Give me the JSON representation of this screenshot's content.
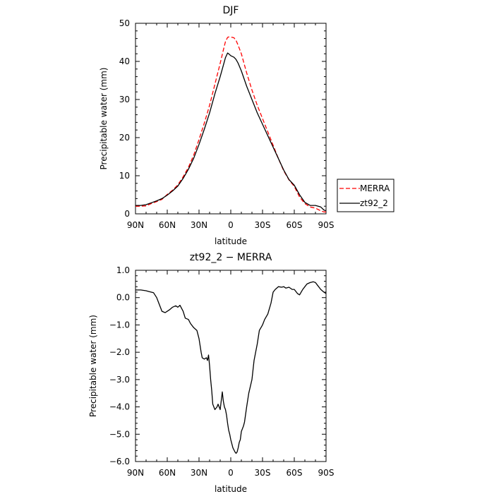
{
  "chart_data": [
    {
      "type": "line",
      "title": "DJF",
      "xlabel": "latitude",
      "ylabel": "Precipitable water (mm)",
      "xlim": [
        90,
        -90
      ],
      "ylim": [
        0,
        50
      ],
      "x_tick_values": [
        90,
        60,
        30,
        0,
        -30,
        -60,
        -90
      ],
      "x_tick_labels": [
        "90N",
        "60N",
        "30N",
        "0",
        "30S",
        "60S",
        "90S"
      ],
      "y_tick_values": [
        0,
        10,
        20,
        30,
        40,
        50
      ],
      "y_tick_labels": [
        "0",
        "10",
        "20",
        "30",
        "40",
        "50"
      ],
      "legend_position": "right, outside plot",
      "series": [
        {
          "name": "MERRA",
          "color": "#ff0000",
          "style": "dashed",
          "x": [
            90,
            85,
            80,
            75,
            70,
            65,
            60,
            55,
            50,
            45,
            40,
            35,
            30,
            25,
            20,
            15,
            10,
            7,
            5,
            3,
            2,
            0,
            -3,
            -5,
            -7,
            -10,
            -15,
            -20,
            -25,
            -30,
            -35,
            -40,
            -45,
            -50,
            -55,
            -60,
            -65,
            -70,
            -75,
            -80,
            -85,
            -88,
            -90
          ],
          "y": [
            2.0,
            2.0,
            2.1,
            2.7,
            3.2,
            3.8,
            5.1,
            6.2,
            7.6,
            9.7,
            12.2,
            15.4,
            19.5,
            23.8,
            28.5,
            34.0,
            39.5,
            43.0,
            45.2,
            46.3,
            46.4,
            46.4,
            46.2,
            45.5,
            44.2,
            42.0,
            37.0,
            32.5,
            28.5,
            25.0,
            21.5,
            18.0,
            14.5,
            11.3,
            8.9,
            7.2,
            4.4,
            2.7,
            1.8,
            1.5,
            0.8,
            0.5,
            0.5
          ]
        },
        {
          "name": "zt92_2",
          "color": "#000000",
          "style": "solid",
          "x": [
            90,
            85,
            80,
            75,
            70,
            65,
            60,
            55,
            50,
            45,
            40,
            35,
            30,
            25,
            20,
            15,
            10,
            7,
            5,
            3,
            2,
            0,
            -3,
            -5,
            -7,
            -10,
            -15,
            -20,
            -25,
            -30,
            -35,
            -40,
            -45,
            -50,
            -55,
            -60,
            -65,
            -70,
            -75,
            -80,
            -85,
            -88,
            -90
          ],
          "y": [
            2.2,
            2.2,
            2.4,
            2.9,
            3.4,
            4.0,
            4.9,
            6.0,
            7.3,
            9.3,
            11.7,
            14.6,
            18.2,
            22.2,
            26.5,
            31.5,
            36.0,
            39.0,
            41.0,
            42.2,
            42.0,
            41.5,
            41.1,
            40.5,
            39.5,
            37.5,
            33.5,
            30.0,
            26.5,
            23.5,
            20.5,
            17.5,
            14.5,
            11.5,
            9.0,
            7.5,
            5.0,
            3.0,
            2.2,
            2.2,
            1.8,
            1.0,
            0.8
          ]
        }
      ]
    },
    {
      "type": "line",
      "title": "zt92_2 − MERRA",
      "xlabel": "latitude",
      "ylabel": "Precipitable water (mm)",
      "xlim": [
        90,
        -90
      ],
      "ylim": [
        -6.0,
        1.0
      ],
      "x_tick_values": [
        90,
        60,
        30,
        0,
        -30,
        -60,
        -90
      ],
      "x_tick_labels": [
        "90N",
        "60N",
        "30N",
        "0",
        "30S",
        "60S",
        "90S"
      ],
      "y_tick_values": [
        1.0,
        0.0,
        -1.0,
        -2.0,
        -3.0,
        -4.0,
        -5.0,
        -6.0
      ],
      "y_tick_labels": [
        "1.0",
        "0.0",
        "−1.0",
        "−2.0",
        "−3.0",
        "−4.0",
        "−5.0",
        "−6.0"
      ],
      "series": [
        {
          "name": "",
          "color": "#000000",
          "style": "solid",
          "x": [
            90,
            85,
            80,
            77,
            73,
            70,
            68,
            65,
            62,
            60,
            58,
            55,
            52,
            50,
            48,
            45,
            43,
            40,
            38,
            35,
            32,
            30,
            28,
            27,
            25,
            23,
            22,
            21,
            20,
            19,
            18,
            17,
            15,
            13,
            12,
            10,
            8,
            7,
            6,
            5,
            4,
            3,
            2,
            1,
            0,
            -2,
            -4,
            -5,
            -6,
            -7,
            -8,
            -9,
            -10,
            -12,
            -13,
            -15,
            -17,
            -20,
            -22,
            -25,
            -27,
            -30,
            -32,
            -35,
            -38,
            -40,
            -42,
            -45,
            -48,
            -50,
            -52,
            -55,
            -58,
            -60,
            -63,
            -65,
            -68,
            -70,
            -72,
            -75,
            -78,
            -80,
            -82,
            -85,
            -88,
            -90
          ],
          "y": [
            0.28,
            0.28,
            0.25,
            0.22,
            0.18,
            0.0,
            -0.2,
            -0.5,
            -0.55,
            -0.5,
            -0.45,
            -0.35,
            -0.3,
            -0.35,
            -0.28,
            -0.5,
            -0.75,
            -0.8,
            -0.95,
            -1.1,
            -1.2,
            -1.5,
            -2.0,
            -2.2,
            -2.25,
            -2.2,
            -2.3,
            -2.1,
            -2.5,
            -3.0,
            -3.4,
            -3.9,
            -4.1,
            -4.0,
            -3.9,
            -4.1,
            -3.45,
            -3.8,
            -4.0,
            -4.1,
            -4.3,
            -4.6,
            -4.85,
            -5.0,
            -5.2,
            -5.5,
            -5.65,
            -5.7,
            -5.65,
            -5.5,
            -5.3,
            -5.2,
            -4.9,
            -4.7,
            -4.55,
            -4.0,
            -3.5,
            -3.0,
            -2.3,
            -1.7,
            -1.2,
            -1.0,
            -0.8,
            -0.6,
            -0.2,
            0.2,
            0.3,
            0.4,
            0.38,
            0.4,
            0.35,
            0.38,
            0.3,
            0.3,
            0.15,
            0.1,
            0.3,
            0.4,
            0.5,
            0.55,
            0.58,
            0.55,
            0.45,
            0.3,
            0.2,
            0.15
          ]
        }
      ]
    }
  ]
}
